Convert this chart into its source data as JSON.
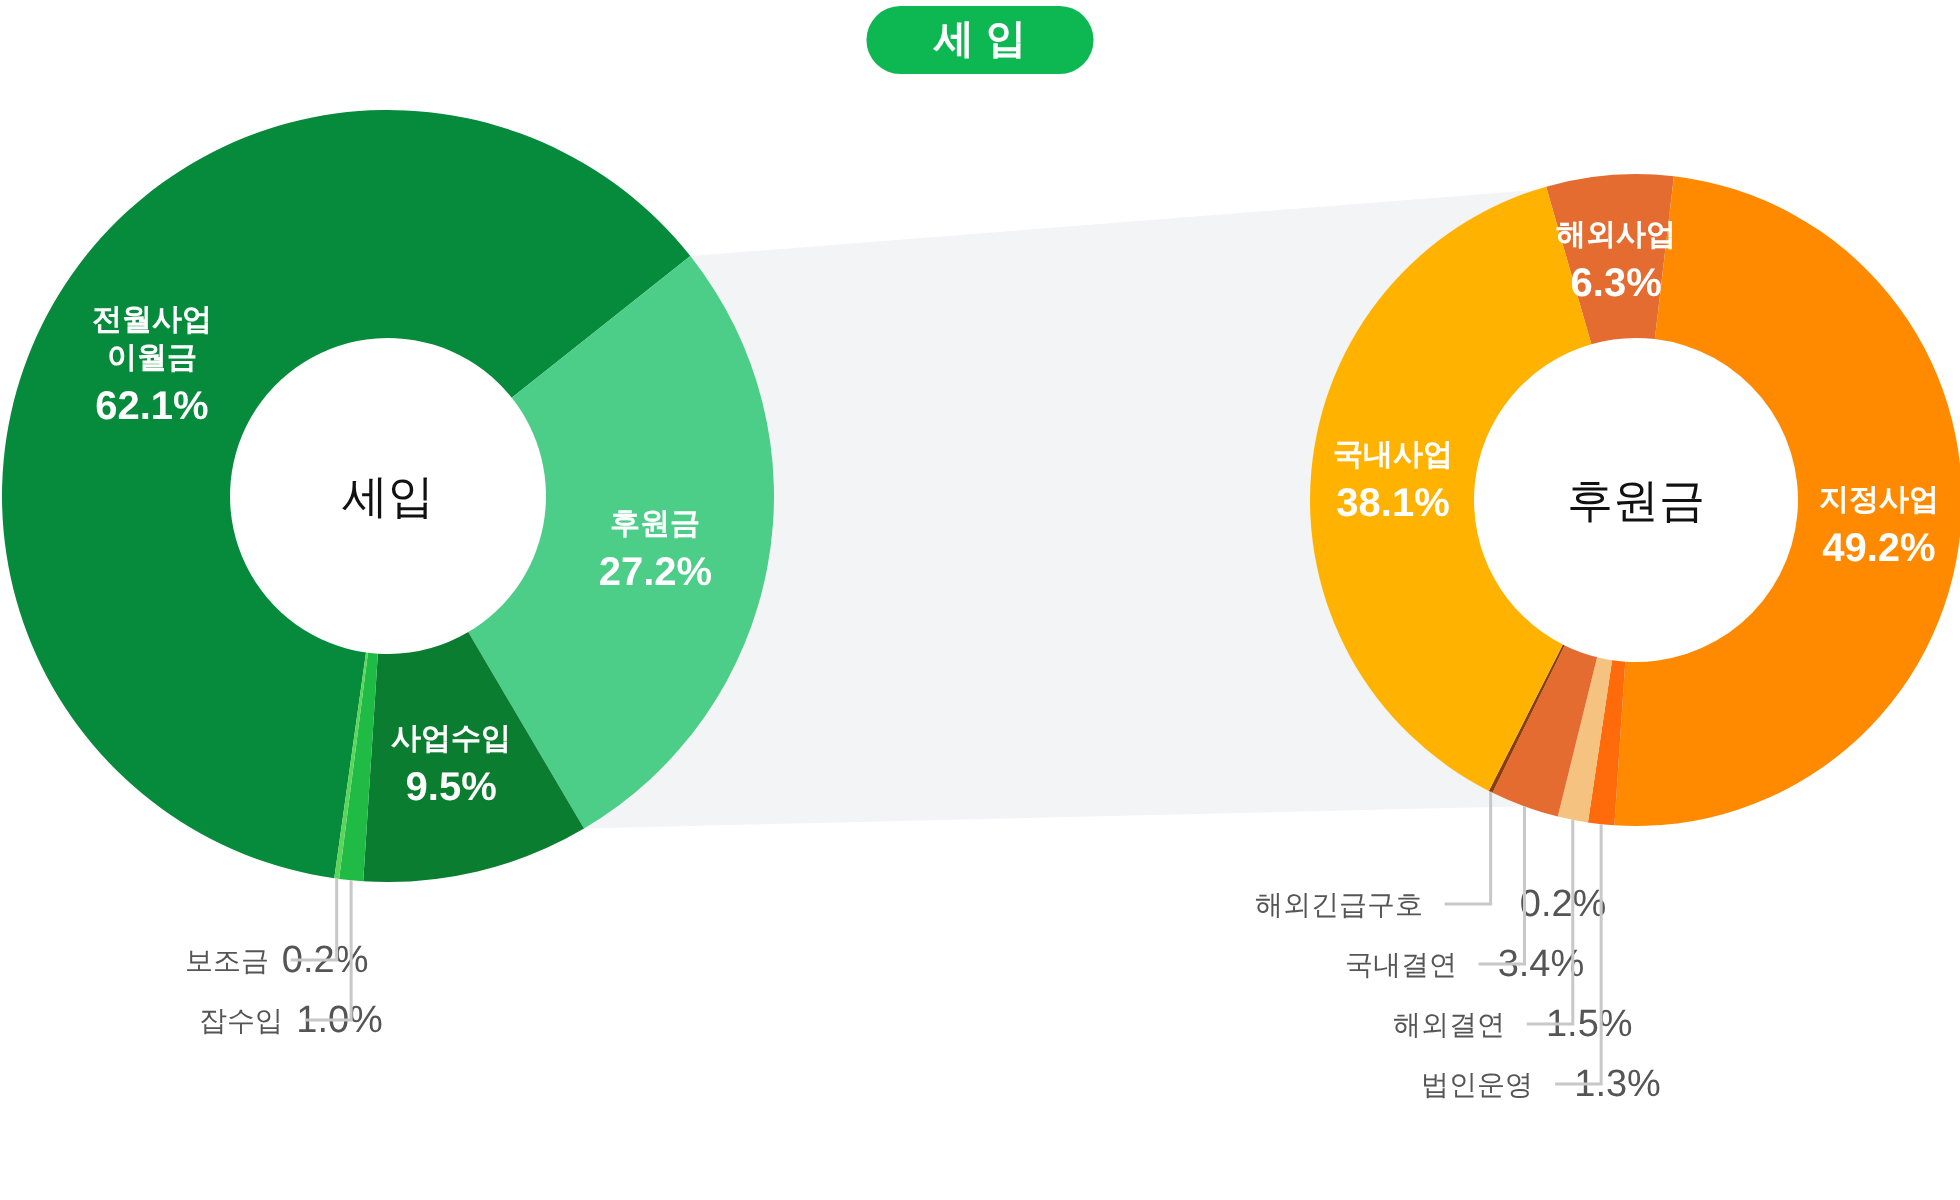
{
  "chart_data": [
    {
      "type": "donut",
      "title": "세 입",
      "categories": [
        "전월사업 이월금",
        "후원금",
        "사업수입",
        "잡수입",
        "보조금"
      ],
      "values": [
        62.1,
        27.2,
        9.5,
        1.0,
        0.2
      ],
      "value_labels": [
        "62.1%",
        "27.2%",
        "9.5%",
        "1.0%",
        "0.2%"
      ],
      "colors": [
        "#058b3b",
        "#4ccd88",
        "#0a7d30",
        "#20bb45",
        "#5dd55a"
      ],
      "annotations": [
        "세입"
      ]
    },
    {
      "type": "donut",
      "categories": [
        "해외사업",
        "지정사업",
        "법인운영",
        "해외결연",
        "국내결연",
        "해외긴급구호",
        "국내사업"
      ],
      "values": [
        6.3,
        49.2,
        1.3,
        1.5,
        3.4,
        0.2,
        38.1
      ],
      "value_labels": [
        "6.3%",
        "49.2%",
        "1.3%",
        "1.5%",
        "3.4%",
        "0.2%",
        "38.1%"
      ],
      "colors": [
        "#e46c30",
        "#ff8a00",
        "#ff6b0a",
        "#f5c27f",
        "#e46c30",
        "#8a3d0b",
        "#ffb300"
      ],
      "annotations": [
        "후원금"
      ]
    }
  ]
}
